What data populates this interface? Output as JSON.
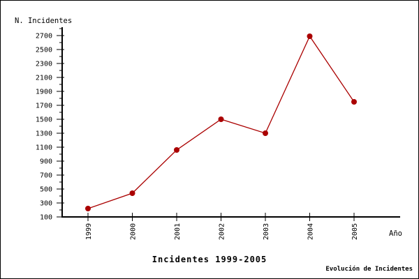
{
  "chart_data": {
    "type": "line",
    "title": "Incidentes 1999-2005",
    "ylabel": "N. Incidentes",
    "xlabel": "Año",
    "footer_note": "Evolución de Incidentes",
    "categories": [
      "1999",
      "2000",
      "2001",
      "2002",
      "2003",
      "2004",
      "2005"
    ],
    "series": [
      {
        "name": "Incidentes",
        "values": [
          220,
          440,
          1060,
          1500,
          1300,
          2690,
          1750
        ]
      }
    ],
    "ylim": [
      100,
      2800
    ],
    "y_tick_values": [
      100,
      300,
      500,
      700,
      900,
      1100,
      1300,
      1500,
      1700,
      1900,
      2100,
      2300,
      2500,
      2700
    ],
    "y_minor_tick_values": [
      200,
      400,
      600,
      800,
      1000,
      1200,
      1400,
      1600,
      1800,
      2000,
      2200,
      2400,
      2600,
      2800
    ],
    "grid": false,
    "legend_position": "none",
    "colors": {
      "line": "#aa0000",
      "marker": "#aa0000",
      "axis": "#000000",
      "text": "#000000",
      "background": "#ffffff"
    }
  }
}
